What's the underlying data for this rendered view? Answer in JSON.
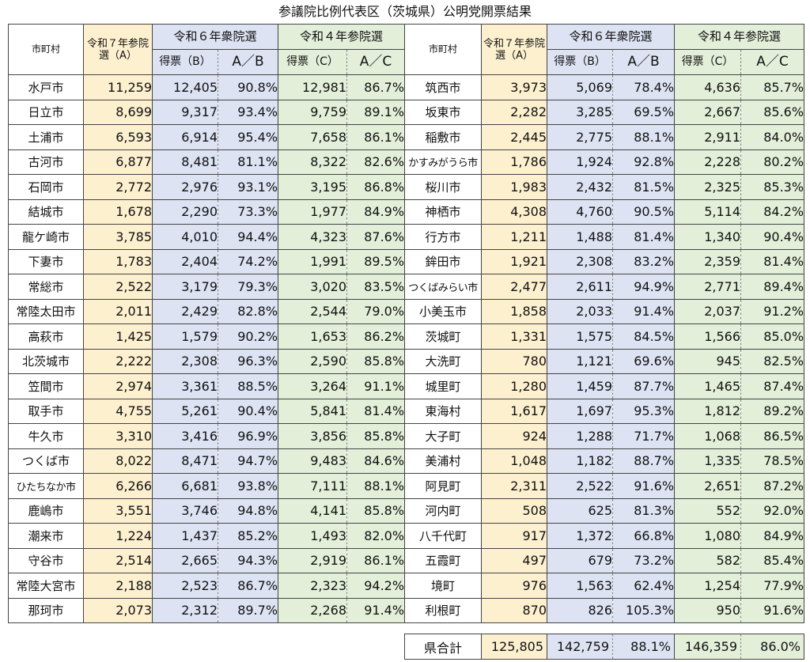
{
  "title": "参議院比例代表区（茨城県）公明党開票結果",
  "headers": {
    "municipality": "市町村",
    "r7": "令和７年参院選（A）",
    "r6": "令和６年衆院選",
    "r4": "令和４年参院選",
    "votes_b": "得票（B）",
    "ratio_ab": "A／B",
    "votes_c": "得票（C）",
    "ratio_ac": "A／C"
  },
  "rows_left": [
    [
      "水戸市",
      "11,259",
      "12,405",
      "90.8%",
      "12,981",
      "86.7%"
    ],
    [
      "日立市",
      "8,699",
      "9,317",
      "93.4%",
      "9,759",
      "89.1%"
    ],
    [
      "土浦市",
      "6,593",
      "6,914",
      "95.4%",
      "7,658",
      "86.1%"
    ],
    [
      "古河市",
      "6,877",
      "8,481",
      "81.1%",
      "8,322",
      "82.6%"
    ],
    [
      "石岡市",
      "2,772",
      "2,976",
      "93.1%",
      "3,195",
      "86.8%"
    ],
    [
      "結城市",
      "1,678",
      "2,290",
      "73.3%",
      "1,977",
      "84.9%"
    ],
    [
      "龍ケ崎市",
      "3,785",
      "4,010",
      "94.4%",
      "4,323",
      "87.6%"
    ],
    [
      "下妻市",
      "1,783",
      "2,404",
      "74.2%",
      "1,991",
      "89.5%"
    ],
    [
      "常総市",
      "2,522",
      "3,179",
      "79.3%",
      "3,020",
      "83.5%"
    ],
    [
      "常陸太田市",
      "2,011",
      "2,429",
      "82.8%",
      "2,544",
      "79.0%"
    ],
    [
      "高萩市",
      "1,425",
      "1,579",
      "90.2%",
      "1,653",
      "86.2%"
    ],
    [
      "北茨城市",
      "2,222",
      "2,308",
      "96.3%",
      "2,590",
      "85.8%"
    ],
    [
      "笠間市",
      "2,974",
      "3,361",
      "88.5%",
      "3,264",
      "91.1%"
    ],
    [
      "取手市",
      "4,755",
      "5,261",
      "90.4%",
      "5,841",
      "81.4%"
    ],
    [
      "牛久市",
      "3,310",
      "3,416",
      "96.9%",
      "3,856",
      "85.8%"
    ],
    [
      "つくば市",
      "8,022",
      "8,471",
      "94.7%",
      "9,483",
      "84.6%"
    ],
    [
      "ひたちなか市",
      "6,266",
      "6,681",
      "93.8%",
      "7,111",
      "88.1%"
    ],
    [
      "鹿嶋市",
      "3,551",
      "3,746",
      "94.8%",
      "4,141",
      "85.8%"
    ],
    [
      "潮来市",
      "1,224",
      "1,437",
      "85.2%",
      "1,493",
      "82.0%"
    ],
    [
      "守谷市",
      "2,514",
      "2,665",
      "94.3%",
      "2,919",
      "86.1%"
    ],
    [
      "常陸大宮市",
      "2,188",
      "2,523",
      "86.7%",
      "2,323",
      "94.2%"
    ],
    [
      "那珂市",
      "2,073",
      "2,312",
      "89.7%",
      "2,268",
      "91.4%"
    ]
  ],
  "rows_right": [
    [
      "筑西市",
      "3,973",
      "5,069",
      "78.4%",
      "4,636",
      "85.7%"
    ],
    [
      "坂東市",
      "2,282",
      "3,285",
      "69.5%",
      "2,667",
      "85.6%"
    ],
    [
      "稲敷市",
      "2,445",
      "2,775",
      "88.1%",
      "2,911",
      "84.0%"
    ],
    [
      "かすみがうら市",
      "1,786",
      "1,924",
      "92.8%",
      "2,228",
      "80.2%"
    ],
    [
      "桜川市",
      "1,983",
      "2,432",
      "81.5%",
      "2,325",
      "85.3%"
    ],
    [
      "神栖市",
      "4,308",
      "4,760",
      "90.5%",
      "5,114",
      "84.2%"
    ],
    [
      "行方市",
      "1,211",
      "1,488",
      "81.4%",
      "1,340",
      "90.4%"
    ],
    [
      "鉾田市",
      "1,921",
      "2,308",
      "83.2%",
      "2,359",
      "81.4%"
    ],
    [
      "つくばみらい市",
      "2,477",
      "2,611",
      "94.9%",
      "2,771",
      "89.4%"
    ],
    [
      "小美玉市",
      "1,858",
      "2,033",
      "91.4%",
      "2,037",
      "91.2%"
    ],
    [
      "茨城町",
      "1,331",
      "1,575",
      "84.5%",
      "1,566",
      "85.0%"
    ],
    [
      "大洗町",
      "780",
      "1,121",
      "69.6%",
      "945",
      "82.5%"
    ],
    [
      "城里町",
      "1,280",
      "1,459",
      "87.7%",
      "1,465",
      "87.4%"
    ],
    [
      "東海村",
      "1,617",
      "1,697",
      "95.3%",
      "1,812",
      "89.2%"
    ],
    [
      "大子町",
      "924",
      "1,288",
      "71.7%",
      "1,068",
      "86.5%"
    ],
    [
      "美浦村",
      "1,048",
      "1,182",
      "88.7%",
      "1,335",
      "78.5%"
    ],
    [
      "阿見町",
      "2,311",
      "2,522",
      "91.6%",
      "2,651",
      "87.2%"
    ],
    [
      "河内町",
      "508",
      "625",
      "81.3%",
      "552",
      "92.0%"
    ],
    [
      "八千代町",
      "917",
      "1,372",
      "66.8%",
      "1,080",
      "84.9%"
    ],
    [
      "五霞町",
      "497",
      "679",
      "73.2%",
      "582",
      "85.4%"
    ],
    [
      "境町",
      "976",
      "1,563",
      "62.4%",
      "1,254",
      "77.9%"
    ],
    [
      "利根町",
      "870",
      "826",
      "105.3%",
      "950",
      "91.6%"
    ]
  ],
  "total": [
    "県合計",
    "125,805",
    "142,759",
    "88.1%",
    "146,359",
    "86.0%"
  ]
}
